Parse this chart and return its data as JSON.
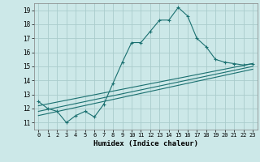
{
  "title": "",
  "xlabel": "Humidex (Indice chaleur)",
  "ylabel": "",
  "bg_color": "#cce8e8",
  "grid_color": "#aacccc",
  "line_color": "#1a7070",
  "xlim": [
    -0.5,
    23.5
  ],
  "ylim": [
    10.5,
    19.5
  ],
  "yticks": [
    11,
    12,
    13,
    14,
    15,
    16,
    17,
    18,
    19
  ],
  "xticks": [
    0,
    1,
    2,
    3,
    4,
    5,
    6,
    7,
    8,
    9,
    10,
    11,
    12,
    13,
    14,
    15,
    16,
    17,
    18,
    19,
    20,
    21,
    22,
    23
  ],
  "series": [
    {
      "x": [
        0,
        1,
        2,
        3,
        4,
        5,
        6,
        7,
        8,
        9,
        10,
        11,
        12,
        13,
        14,
        15,
        16,
        17,
        18,
        19,
        20,
        21,
        22,
        23
      ],
      "y": [
        12.5,
        12.0,
        11.8,
        11.0,
        11.5,
        11.8,
        11.4,
        12.3,
        13.8,
        15.3,
        16.7,
        16.7,
        17.5,
        18.3,
        18.3,
        19.2,
        18.6,
        17.0,
        16.4,
        15.5,
        15.3,
        15.2,
        15.1,
        15.2
      ]
    },
    {
      "x": [
        0,
        23
      ],
      "y": [
        12.2,
        15.2
      ]
    },
    {
      "x": [
        0,
        23
      ],
      "y": [
        11.8,
        15.0
      ]
    },
    {
      "x": [
        0,
        23
      ],
      "y": [
        11.5,
        14.8
      ]
    }
  ]
}
